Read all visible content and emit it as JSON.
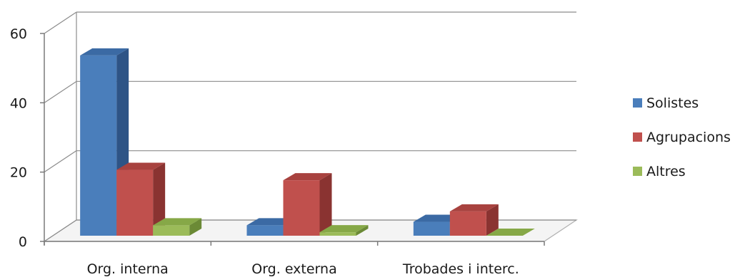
{
  "chart_data": {
    "type": "bar",
    "categories": [
      "Org. interna",
      "Org. externa",
      "Trobades i interc."
    ],
    "series": [
      {
        "name": "Solistes",
        "values": [
          52,
          3,
          4
        ],
        "color": "#4a7ebb",
        "side": "#2e5486",
        "top": "#3b6aa4"
      },
      {
        "name": "Agrupacions",
        "values": [
          19,
          16,
          7
        ],
        "color": "#c0504d",
        "side": "#8a3331",
        "top": "#a8423f"
      },
      {
        "name": "Altres",
        "values": [
          3,
          1,
          0
        ],
        "color": "#9bbb59",
        "side": "#6b8a36",
        "top": "#86a847"
      }
    ],
    "yticks": [
      0,
      20,
      40,
      60
    ],
    "ylim": [
      0,
      60
    ],
    "grid": true,
    "legend": "right",
    "title": "",
    "xlabel": "",
    "ylabel": ""
  }
}
